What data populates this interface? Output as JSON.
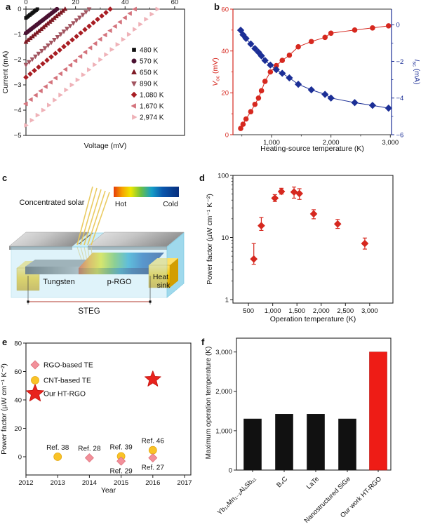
{
  "figure": {
    "background": "#ffffff",
    "panels": {
      "a": "a",
      "b": "b",
      "c": "c",
      "d": "d",
      "e": "e",
      "f": "f"
    }
  },
  "chart_data": [
    {
      "panel": "a",
      "type": "scatter",
      "title": "",
      "xlabel": "Voltage (mV)",
      "ylabel": "Current (mA)",
      "xlim": [
        0,
        64
      ],
      "ylim": [
        -5,
        0
      ],
      "xticks": [
        0,
        20,
        40,
        60
      ],
      "xticks_minor": [
        10,
        30,
        50
      ],
      "yticks": [
        0,
        -1,
        -2,
        -3,
        -4,
        -5
      ],
      "x_axis_position": "top",
      "legend_position": "middle-right",
      "description": "Linear I-V lines; each series runs from (0 mV, Isc) to (Voc mV, 0 mA)",
      "series": [
        {
          "label": "480 K",
          "marker": "square",
          "color": "#111111",
          "isc": -0.35,
          "voc": 4.6,
          "n": 10
        },
        {
          "label": "570 K",
          "marker": "circle",
          "color": "#4b1232",
          "isc": -0.95,
          "voc": 12.5,
          "n": 19
        },
        {
          "label": "650 K",
          "marker": "triangle-up",
          "color": "#7d1822",
          "isc": -1.3,
          "voc": 15.8,
          "n": 19
        },
        {
          "label": "890 K",
          "marker": "triangle-down",
          "color": "#a25560",
          "isc": -2.2,
          "voc": 25.5,
          "n": 21
        },
        {
          "label": "1,080 K",
          "marker": "diamond",
          "color": "#a81e24",
          "isc": -2.7,
          "voc": 34.0,
          "n": 21
        },
        {
          "label": "1,670 K",
          "marker": "triangle-left",
          "color": "#d4737c",
          "isc": -3.75,
          "voc": 44.0,
          "n": 23
        },
        {
          "label": "2,974 K",
          "marker": "triangle-right",
          "color": "#efb2b8",
          "isc": -4.6,
          "voc": 53.0,
          "n": 24
        }
      ]
    },
    {
      "panel": "b",
      "type": "line",
      "xlabel": "Heating-source temperature (K)",
      "xlim": [
        350,
        3020
      ],
      "xticks": [
        {
          "v": 1000,
          "label": "1,000"
        },
        {
          "v": 2000,
          "label": "2,000"
        },
        {
          "v": 3000,
          "label": "3,000"
        }
      ],
      "xticks_minor": [
        500,
        1500,
        2500
      ],
      "axis_left": {
        "label_pre": "V",
        "label_sub": "oc",
        "label_post": " (mV)",
        "color": "#d6281f",
        "lim": [
          0,
          60
        ],
        "ticks": [
          0,
          20,
          40,
          60
        ],
        "ticks_minor": [
          10,
          30,
          50
        ]
      },
      "axis_right": {
        "label_pre": "I",
        "label_sub": "sc",
        "label_post": " (mA)",
        "color": "#1c2f96",
        "lim": [
          -6,
          0.85
        ],
        "ticks": [
          0,
          -2,
          -4,
          -6
        ],
        "ticks_minor": [
          -1,
          -3,
          -5
        ]
      },
      "series": [
        {
          "name": "Voc",
          "axis": "left",
          "marker": "circle",
          "color": "#d6281f",
          "points": [
            [
              480,
              3
            ],
            [
              520,
              5
            ],
            [
              570,
              7.5
            ],
            [
              650,
              11
            ],
            [
              720,
              14.5
            ],
            [
              780,
              17.5
            ],
            [
              830,
              21
            ],
            [
              890,
              25.5
            ],
            [
              980,
              30
            ],
            [
              1080,
              33
            ],
            [
              1180,
              35.5
            ],
            [
              1300,
              38
            ],
            [
              1450,
              42
            ],
            [
              1670,
              44.5
            ],
            [
              1900,
              46.5
            ],
            [
              2000,
              48.5
            ],
            [
              2400,
              50
            ],
            [
              2700,
              51
            ],
            [
              2970,
              52
            ]
          ]
        },
        {
          "name": "Isc",
          "axis": "right",
          "marker": "diamond",
          "color": "#1c2f96",
          "points": [
            [
              480,
              -0.3
            ],
            [
              520,
              -0.55
            ],
            [
              570,
              -0.75
            ],
            [
              650,
              -1.05
            ],
            [
              720,
              -1.3
            ],
            [
              780,
              -1.5
            ],
            [
              830,
              -1.7
            ],
            [
              890,
              -1.95
            ],
            [
              980,
              -2.2
            ],
            [
              1080,
              -2.45
            ],
            [
              1180,
              -2.65
            ],
            [
              1300,
              -2.9
            ],
            [
              1450,
              -3.25
            ],
            [
              1670,
              -3.55
            ],
            [
              1900,
              -3.8
            ],
            [
              2000,
              -4.0
            ],
            [
              2400,
              -4.25
            ],
            [
              2700,
              -4.4
            ],
            [
              2970,
              -4.55
            ]
          ]
        }
      ]
    },
    {
      "panel": "d",
      "type": "scatter",
      "xlabel": "Operation temperature (K)",
      "ylabel": "Power factor (µW cm⁻¹ K⁻²)",
      "xlim": [
        180,
        3480
      ],
      "ylim_log": [
        1,
        100
      ],
      "xticks": [
        {
          "v": 500,
          "label": "500"
        },
        {
          "v": 1000,
          "label": "1,000"
        },
        {
          "v": 1500,
          "label": "1,500"
        },
        {
          "v": 2000,
          "label": "2,000"
        },
        {
          "v": 2500,
          "label": "2,500"
        },
        {
          "v": 3000,
          "label": "3,000"
        }
      ],
      "yticks": [
        {
          "v": 1,
          "label": "1"
        },
        {
          "v": 10,
          "label": "10"
        },
        {
          "v": 100,
          "label": "100"
        }
      ],
      "marker": "diamond",
      "color": "#d6281f",
      "points": [
        {
          "T": 610,
          "pf": 4.5,
          "lo": 3.7,
          "hi": 8.0
        },
        {
          "T": 765,
          "pf": 15.5,
          "lo": 13,
          "hi": 21
        },
        {
          "T": 1045,
          "pf": 43,
          "lo": 38,
          "hi": 49
        },
        {
          "T": 1180,
          "pf": 55,
          "lo": 50,
          "hi": 62
        },
        {
          "T": 1440,
          "pf": 54,
          "lo": 43,
          "hi": 65
        },
        {
          "T": 1550,
          "pf": 51,
          "lo": 41,
          "hi": 61
        },
        {
          "T": 1845,
          "pf": 24,
          "lo": 20,
          "hi": 28
        },
        {
          "T": 2340,
          "pf": 16.5,
          "lo": 14,
          "hi": 19.5
        },
        {
          "T": 2900,
          "pf": 8,
          "lo": 6.5,
          "hi": 9.8
        }
      ]
    },
    {
      "panel": "e",
      "type": "scatter",
      "xlabel": "Year",
      "ylabel": "Power factor (µW cm⁻¹ K⁻²)",
      "xlim": [
        2012,
        2017.2
      ],
      "ylim": [
        -13,
        80
      ],
      "xticks": [
        2012,
        2013,
        2014,
        2015,
        2016,
        2017
      ],
      "yticks": [
        0,
        20,
        40,
        60,
        80
      ],
      "legend_position": "top-left",
      "legend": [
        {
          "label": "RGO-based TE",
          "marker": "diamond",
          "fill": "#f2909a",
          "stroke": "#dd6f7a"
        },
        {
          "label": "CNT-based TE",
          "marker": "circle",
          "fill": "#f9c327",
          "stroke": "#e5a912"
        },
        {
          "label": "Our HT-RGO",
          "marker": "star",
          "fill": "#e8231d",
          "stroke": "#c41511"
        }
      ],
      "points": [
        {
          "series": "CNT-based TE",
          "year": 2013,
          "pf": 0,
          "ref": "Ref. 38",
          "ref_pos": "above"
        },
        {
          "series": "RGO-based TE",
          "year": 2014,
          "pf": -0.8,
          "ref": "Ref. 28",
          "ref_pos": "above"
        },
        {
          "series": "CNT-based TE",
          "year": 2015,
          "pf": 0.3,
          "ref": "Ref. 39",
          "ref_pos": "above"
        },
        {
          "series": "RGO-based TE",
          "year": 2015,
          "pf": -3.1,
          "ref": "Ref. 29",
          "ref_pos": "below"
        },
        {
          "series": "CNT-based TE",
          "year": 2016,
          "pf": 4.6,
          "ref": "Ref. 46",
          "ref_pos": "above"
        },
        {
          "series": "RGO-based TE",
          "year": 2016,
          "pf": -0.8,
          "ref": "Ref. 27",
          "ref_pos": "below"
        },
        {
          "series": "Our HT-RGO",
          "year": 2016,
          "pf": 54.5,
          "ref": "",
          "ref_pos": ""
        }
      ]
    },
    {
      "panel": "f",
      "type": "bar",
      "ylabel": "Maximum operation temperature (K)",
      "ylim": [
        0,
        3350
      ],
      "yticks": [
        {
          "v": 0,
          "label": "0"
        },
        {
          "v": 1000,
          "label": "1,000"
        },
        {
          "v": 2000,
          "label": "2,000"
        },
        {
          "v": 3000,
          "label": "3,000"
        }
      ],
      "categories": [
        "Yb₁₄Mn₁₋ₓAlₓSb₁₁",
        "B₄C",
        "LaTe",
        "Nanostructured SiGe",
        "Our work HT-RGO"
      ],
      "values": [
        1300,
        1420,
        1420,
        1300,
        3000
      ],
      "colors": [
        "#111111",
        "#111111",
        "#111111",
        "#111111",
        "#ee1c16"
      ]
    }
  ],
  "diagram_c": {
    "labels": {
      "solar": "Concentrated solar",
      "hot": "Hot",
      "cold": "Cold",
      "tungsten": "Tungsten",
      "prgo": "p-RGO",
      "heatsink_line1": "Heat",
      "heatsink_line2": "sink",
      "steg": "STEG"
    },
    "colors": {
      "chamber": "#b9e5f4",
      "chamber_top": "#cdeef8",
      "chamber_side": "#9fd9ec",
      "chamber_edge": "#86cde4",
      "lid_light": "#e8e8e8",
      "lid_dark": "#8f8f8f",
      "ray": "#e9c95b",
      "gold": "#f7c600",
      "gold_light": "#ffe065",
      "gold_dark": "#d39e00",
      "tungsten_dark": "#3a3a3a",
      "tungsten_light": "#b5b5b5",
      "dim_line": "#b03a2e",
      "text": "#111111"
    },
    "gradient": [
      "#e63c0a",
      "#f6a200",
      "#eee800",
      "#6abf45",
      "#169fc8",
      "#0b57ad",
      "#072e7e"
    ]
  }
}
